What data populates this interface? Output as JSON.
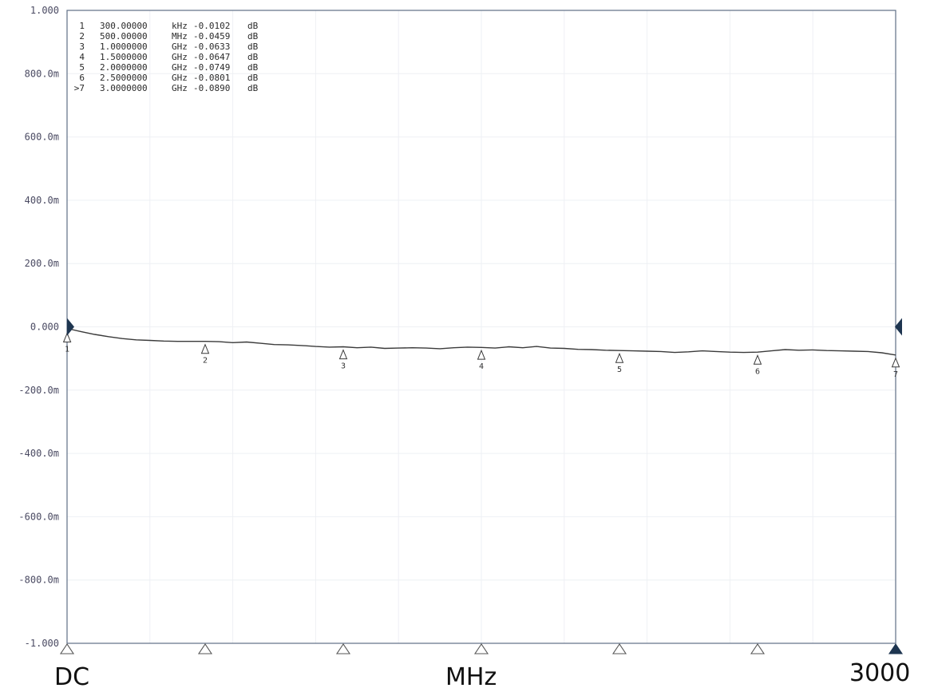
{
  "chart_data": {
    "type": "line",
    "title": "",
    "y_tick_labels": [
      "1.000",
      "800.0m",
      "600.0m",
      "400.0m",
      "200.0m",
      "0.000",
      "-200.0m",
      "-400.0m",
      "-600.0m",
      "-800.0m",
      "-1.000"
    ],
    "ylim": [
      -1.0,
      1.0
    ],
    "xlim": [
      0,
      3000
    ],
    "x_labels": {
      "left": "DC",
      "center": "MHz",
      "right": "3000"
    },
    "grid": true,
    "marker_table": [
      {
        "prefix": "1",
        "freq": "300.00000",
        "unit": "kHz",
        "value": "-0.0102",
        "db": "dB"
      },
      {
        "prefix": "2",
        "freq": "500.00000",
        "unit": "MHz",
        "value": "-0.0459",
        "db": "dB"
      },
      {
        "prefix": "3",
        "freq": "1.0000000",
        "unit": "GHz",
        "value": "-0.0633",
        "db": "dB"
      },
      {
        "prefix": "4",
        "freq": "1.5000000",
        "unit": "GHz",
        "value": "-0.0647",
        "db": "dB"
      },
      {
        "prefix": "5",
        "freq": "2.0000000",
        "unit": "GHz",
        "value": "-0.0749",
        "db": "dB"
      },
      {
        "prefix": "6",
        "freq": "2.5000000",
        "unit": "GHz",
        "value": "-0.0801",
        "db": "dB"
      },
      {
        "prefix": ">7",
        "freq": "3.0000000",
        "unit": "GHz",
        "value": "-0.0890",
        "db": "dB"
      }
    ],
    "markers": [
      {
        "label": "1",
        "x": 0.3,
        "y": -0.0102
      },
      {
        "label": "2",
        "x": 500,
        "y": -0.0459
      },
      {
        "label": "3",
        "x": 1000,
        "y": -0.0633
      },
      {
        "label": "4",
        "x": 1500,
        "y": -0.0647
      },
      {
        "label": "5",
        "x": 2000,
        "y": -0.0749
      },
      {
        "label": "6",
        "x": 2500,
        "y": -0.0801
      },
      {
        "label": "7",
        "x": 3000,
        "y": -0.089
      }
    ],
    "series": [
      {
        "x": [
          0,
          50,
          100,
          150,
          200,
          250,
          300,
          350,
          400,
          450,
          500,
          550,
          600,
          650,
          700,
          750,
          800,
          850,
          900,
          950,
          1000,
          1050,
          1100,
          1150,
          1200,
          1250,
          1300,
          1350,
          1400,
          1450,
          1500,
          1550,
          1600,
          1650,
          1700,
          1750,
          1800,
          1850,
          1900,
          1950,
          2000,
          2050,
          2100,
          2150,
          2200,
          2250,
          2300,
          2350,
          2400,
          2450,
          2500,
          2550,
          2600,
          2650,
          2700,
          2750,
          2800,
          2850,
          2900,
          2950,
          3000
        ],
        "y": [
          -0.005,
          -0.015,
          -0.024,
          -0.031,
          -0.037,
          -0.041,
          -0.043,
          -0.045,
          -0.046,
          -0.046,
          -0.046,
          -0.047,
          -0.05,
          -0.048,
          -0.052,
          -0.056,
          -0.057,
          -0.059,
          -0.062,
          -0.064,
          -0.063,
          -0.066,
          -0.064,
          -0.068,
          -0.067,
          -0.066,
          -0.067,
          -0.069,
          -0.066,
          -0.064,
          -0.065,
          -0.067,
          -0.063,
          -0.066,
          -0.062,
          -0.067,
          -0.068,
          -0.071,
          -0.072,
          -0.074,
          -0.075,
          -0.076,
          -0.077,
          -0.078,
          -0.081,
          -0.079,
          -0.076,
          -0.078,
          -0.08,
          -0.081,
          -0.08,
          -0.076,
          -0.072,
          -0.074,
          -0.073,
          -0.075,
          -0.076,
          -0.077,
          -0.078,
          -0.082,
          -0.089
        ]
      }
    ],
    "colors": {
      "trace": "#3a3a3a",
      "frame": "#5f6f86",
      "grid": "#eef0f4",
      "tick_text": "#4a4a62",
      "ref_marker": "#1e3550",
      "marker": "#3a3a3a"
    }
  }
}
